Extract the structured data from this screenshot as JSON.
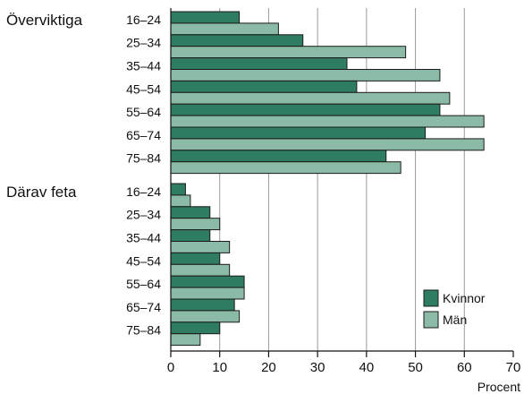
{
  "chart_data": {
    "type": "bar",
    "orientation": "horizontal",
    "categories": [
      "16–24",
      "25–34",
      "35–44",
      "45–54",
      "55–64",
      "65–74",
      "75–84"
    ],
    "groups": [
      {
        "label": "Överviktiga",
        "series": [
          {
            "name": "Kvinnor",
            "values": [
              14,
              27,
              36,
              38,
              55,
              52,
              44
            ]
          },
          {
            "name": "Män",
            "values": [
              22,
              48,
              55,
              57,
              64,
              64,
              47
            ]
          }
        ]
      },
      {
        "label": "Därav feta",
        "series": [
          {
            "name": "Kvinnor",
            "values": [
              3,
              8,
              8,
              10,
              15,
              13,
              10
            ]
          },
          {
            "name": "Män",
            "values": [
              4,
              10,
              12,
              12,
              15,
              14,
              6
            ]
          }
        ]
      }
    ],
    "legend": [
      {
        "name": "Kvinnor",
        "color": "#2e7d62"
      },
      {
        "name": "Män",
        "color": "#8bbaa7"
      }
    ],
    "xlabel": "Procent",
    "xlim": [
      0,
      70
    ],
    "xticks": [
      "0",
      "10",
      "20",
      "30",
      "40",
      "50",
      "60",
      "70"
    ],
    "grid": true,
    "legend_position": "bottom-right",
    "colors": {
      "Kvinnor": "#2e7d62",
      "Män": "#8bbaa7",
      "grid": "#9a9a9a"
    }
  }
}
